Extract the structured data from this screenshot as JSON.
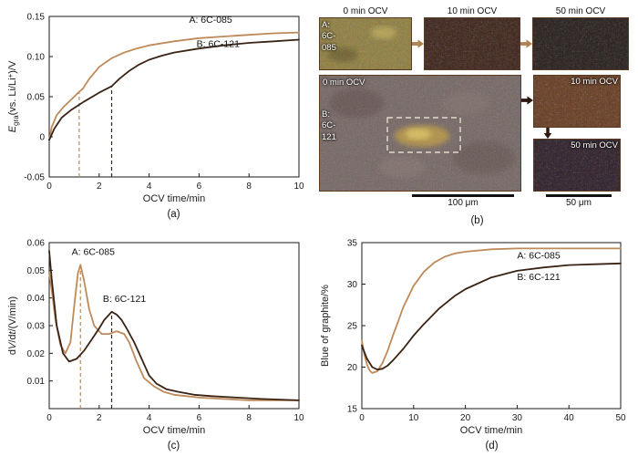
{
  "colors": {
    "series_a": "#bf8a5a",
    "series_b": "#3a2314",
    "axis": "#1a1a1a",
    "annotation": "#111111"
  },
  "panels": {
    "a": {
      "caption": "(a)"
    },
    "b": {
      "caption": "(b)",
      "col_headers": [
        "0 min OCV",
        "10 min OCV",
        "50 min OCV"
      ],
      "row_a_lines": [
        "A:",
        "6C-",
        "085"
      ],
      "row_b_lines": [
        "B:",
        "6C-",
        "121"
      ],
      "big_label": "0 min OCV",
      "small_labels": [
        "10 min OCV",
        "50 min OCV"
      ],
      "scalebar_big": "100 μm",
      "scalebar_small": "50 μm"
    },
    "c": {
      "caption": "(c)"
    },
    "d": {
      "caption": "(d)"
    }
  },
  "chart_data": [
    {
      "panel": "a",
      "type": "line",
      "xlabel": "OCV time/min",
      "ylabel_parts": [
        {
          "t": "E",
          "i": true
        },
        {
          "t": "gra",
          "sub": true
        },
        {
          "t": "(vs. Li/Li"
        },
        {
          "t": "+",
          "sup": true
        },
        {
          "t": ")/V"
        }
      ],
      "xlim": [
        0,
        10
      ],
      "ylim": [
        -0.05,
        0.15
      ],
      "xticks": [
        0,
        2,
        4,
        6,
        8,
        10
      ],
      "yticks": [
        {
          "v": -0.05,
          "l": "-0.05"
        },
        {
          "v": 0,
          "l": "0"
        },
        {
          "v": 0.05,
          "l": "0.05"
        },
        {
          "v": 0.1,
          "l": "0.10"
        },
        {
          "v": 0.15,
          "l": "0.15"
        }
      ],
      "series": [
        {
          "name": "A: 6C-085",
          "color": "series_a",
          "x": [
            0,
            0.1,
            0.3,
            0.6,
            0.9,
            1.0,
            1.2,
            1.35,
            1.6,
            2.0,
            2.5,
            3.0,
            3.5,
            4.0,
            5.0,
            6.0,
            7.0,
            8.0,
            9.0,
            10
          ],
          "y": [
            -0.004,
            0.012,
            0.027,
            0.038,
            0.047,
            0.05,
            0.056,
            0.06,
            0.072,
            0.087,
            0.098,
            0.105,
            0.11,
            0.114,
            0.119,
            0.123,
            0.125,
            0.127,
            0.129,
            0.13
          ]
        },
        {
          "name": "B: 6C-121",
          "color": "series_b",
          "x": [
            0,
            0.2,
            0.5,
            0.9,
            1.4,
            2.0,
            2.5,
            2.8,
            3.2,
            3.6,
            4.0,
            4.5,
            5.0,
            6.0,
            7.0,
            8.0,
            9.0,
            10
          ],
          "y": [
            -0.004,
            0.01,
            0.024,
            0.034,
            0.044,
            0.055,
            0.063,
            0.072,
            0.082,
            0.09,
            0.096,
            0.101,
            0.105,
            0.11,
            0.114,
            0.117,
            0.119,
            0.121
          ]
        }
      ],
      "vlines": [
        {
          "x": 1.2,
          "y1": 0.056,
          "color": "series_a"
        },
        {
          "x": 2.5,
          "y1": 0.063,
          "color": "series_b"
        }
      ],
      "annotations": [
        {
          "text": "A: 6C-085",
          "x": 5.6,
          "y": 0.142
        },
        {
          "text": "B: 6C-121",
          "x": 5.9,
          "y": 0.112
        }
      ]
    },
    {
      "panel": "c",
      "type": "line",
      "xlabel": "OCV time/min",
      "ylabel_parts": [
        {
          "t": "d"
        },
        {
          "t": "V",
          "i": true
        },
        {
          "t": "/d"
        },
        {
          "t": "t",
          "i": true
        },
        {
          "t": "/(V/min)"
        }
      ],
      "xlim": [
        0,
        10
      ],
      "ylim": [
        0,
        0.06
      ],
      "xticks": [
        0,
        2,
        4,
        6,
        8,
        10
      ],
      "yticks": [
        {
          "v": 0.01,
          "l": "0.01"
        },
        {
          "v": 0.02,
          "l": "0.02"
        },
        {
          "v": 0.03,
          "l": "0.03"
        },
        {
          "v": 0.04,
          "l": "0.04"
        },
        {
          "v": 0.05,
          "l": "0.05"
        },
        {
          "v": 0.06,
          "l": "0.06"
        }
      ],
      "series": [
        {
          "name": "A: 6C-085",
          "color": "series_a",
          "x": [
            0,
            0.1,
            0.25,
            0.45,
            0.65,
            0.85,
            1.0,
            1.15,
            1.25,
            1.4,
            1.6,
            1.8,
            2.1,
            2.4,
            2.7,
            3.0,
            3.2,
            3.5,
            3.8,
            4.2,
            4.6,
            5.0,
            5.5,
            6.0,
            7.0,
            8.0,
            9.0,
            10
          ],
          "y": [
            0.049,
            0.043,
            0.032,
            0.023,
            0.02,
            0.024,
            0.037,
            0.049,
            0.052,
            0.046,
            0.036,
            0.03,
            0.027,
            0.027,
            0.028,
            0.027,
            0.024,
            0.017,
            0.011,
            0.008,
            0.006,
            0.005,
            0.0045,
            0.004,
            0.0035,
            0.003,
            0.003,
            0.003
          ]
        },
        {
          "name": "B: 6C-121",
          "color": "series_b",
          "x": [
            0,
            0.1,
            0.3,
            0.55,
            0.8,
            1.1,
            1.4,
            1.7,
            2.0,
            2.2,
            2.4,
            2.5,
            2.7,
            2.9,
            3.1,
            3.4,
            3.7,
            4.0,
            4.3,
            4.7,
            5.2,
            5.8,
            6.5,
            7.5,
            8.5,
            10
          ],
          "y": [
            0.057,
            0.047,
            0.03,
            0.02,
            0.017,
            0.018,
            0.021,
            0.025,
            0.029,
            0.032,
            0.034,
            0.035,
            0.034,
            0.032,
            0.029,
            0.024,
            0.018,
            0.012,
            0.009,
            0.007,
            0.006,
            0.005,
            0.0045,
            0.004,
            0.0035,
            0.003
          ]
        }
      ],
      "vlines": [
        {
          "x": 1.25,
          "y1": 0.052,
          "color": "series_a"
        },
        {
          "x": 2.5,
          "y1": 0.035,
          "color": "series_b"
        }
      ],
      "annotations": [
        {
          "text": "A: 6C-085",
          "x": 0.9,
          "y": 0.0555
        },
        {
          "text": "B: 6C-121",
          "x": 2.15,
          "y": 0.0385
        }
      ]
    },
    {
      "panel": "d",
      "type": "line",
      "xlabel": "OCV time/min",
      "ylabel_parts": [
        {
          "t": "Blue of graphite/%"
        }
      ],
      "xlim": [
        0,
        50
      ],
      "ylim": [
        15,
        35
      ],
      "xticks": [
        0,
        10,
        20,
        30,
        40,
        50
      ],
      "yticks": [
        {
          "v": 15,
          "l": "15"
        },
        {
          "v": 20,
          "l": "20"
        },
        {
          "v": 25,
          "l": "25"
        },
        {
          "v": 30,
          "l": "30"
        },
        {
          "v": 35,
          "l": "35"
        }
      ],
      "series": [
        {
          "name": "A: 6C-085",
          "color": "series_a",
          "x": [
            0,
            0.5,
            1,
            1.5,
            2,
            3,
            4,
            5,
            6,
            7,
            8,
            10,
            12,
            14,
            16,
            18,
            20,
            25,
            30,
            35,
            40,
            45,
            50
          ],
          "y": [
            23.2,
            21.5,
            20.3,
            19.6,
            19.3,
            19.5,
            20.5,
            22.0,
            23.8,
            25.5,
            27.2,
            29.8,
            31.5,
            32.6,
            33.3,
            33.7,
            33.9,
            34.2,
            34.3,
            34.3,
            34.3,
            34.3,
            34.3
          ]
        },
        {
          "name": "B: 6C-121",
          "color": "series_b",
          "x": [
            0,
            0.5,
            1,
            2,
            3,
            4,
            5,
            6,
            8,
            10,
            12,
            15,
            18,
            20,
            25,
            30,
            35,
            40,
            45,
            50
          ],
          "y": [
            22.6,
            21.8,
            21.0,
            20.0,
            19.7,
            19.8,
            20.2,
            20.8,
            22.2,
            23.8,
            25.2,
            27.1,
            28.6,
            29.4,
            30.8,
            31.6,
            32.0,
            32.3,
            32.4,
            32.5
          ]
        }
      ],
      "vlines": [],
      "annotations": [
        {
          "text": "A: 6C-085",
          "x": 30,
          "y": 33.1
        },
        {
          "text": "B: 6C-121",
          "x": 30,
          "y": 30.5
        }
      ]
    }
  ]
}
